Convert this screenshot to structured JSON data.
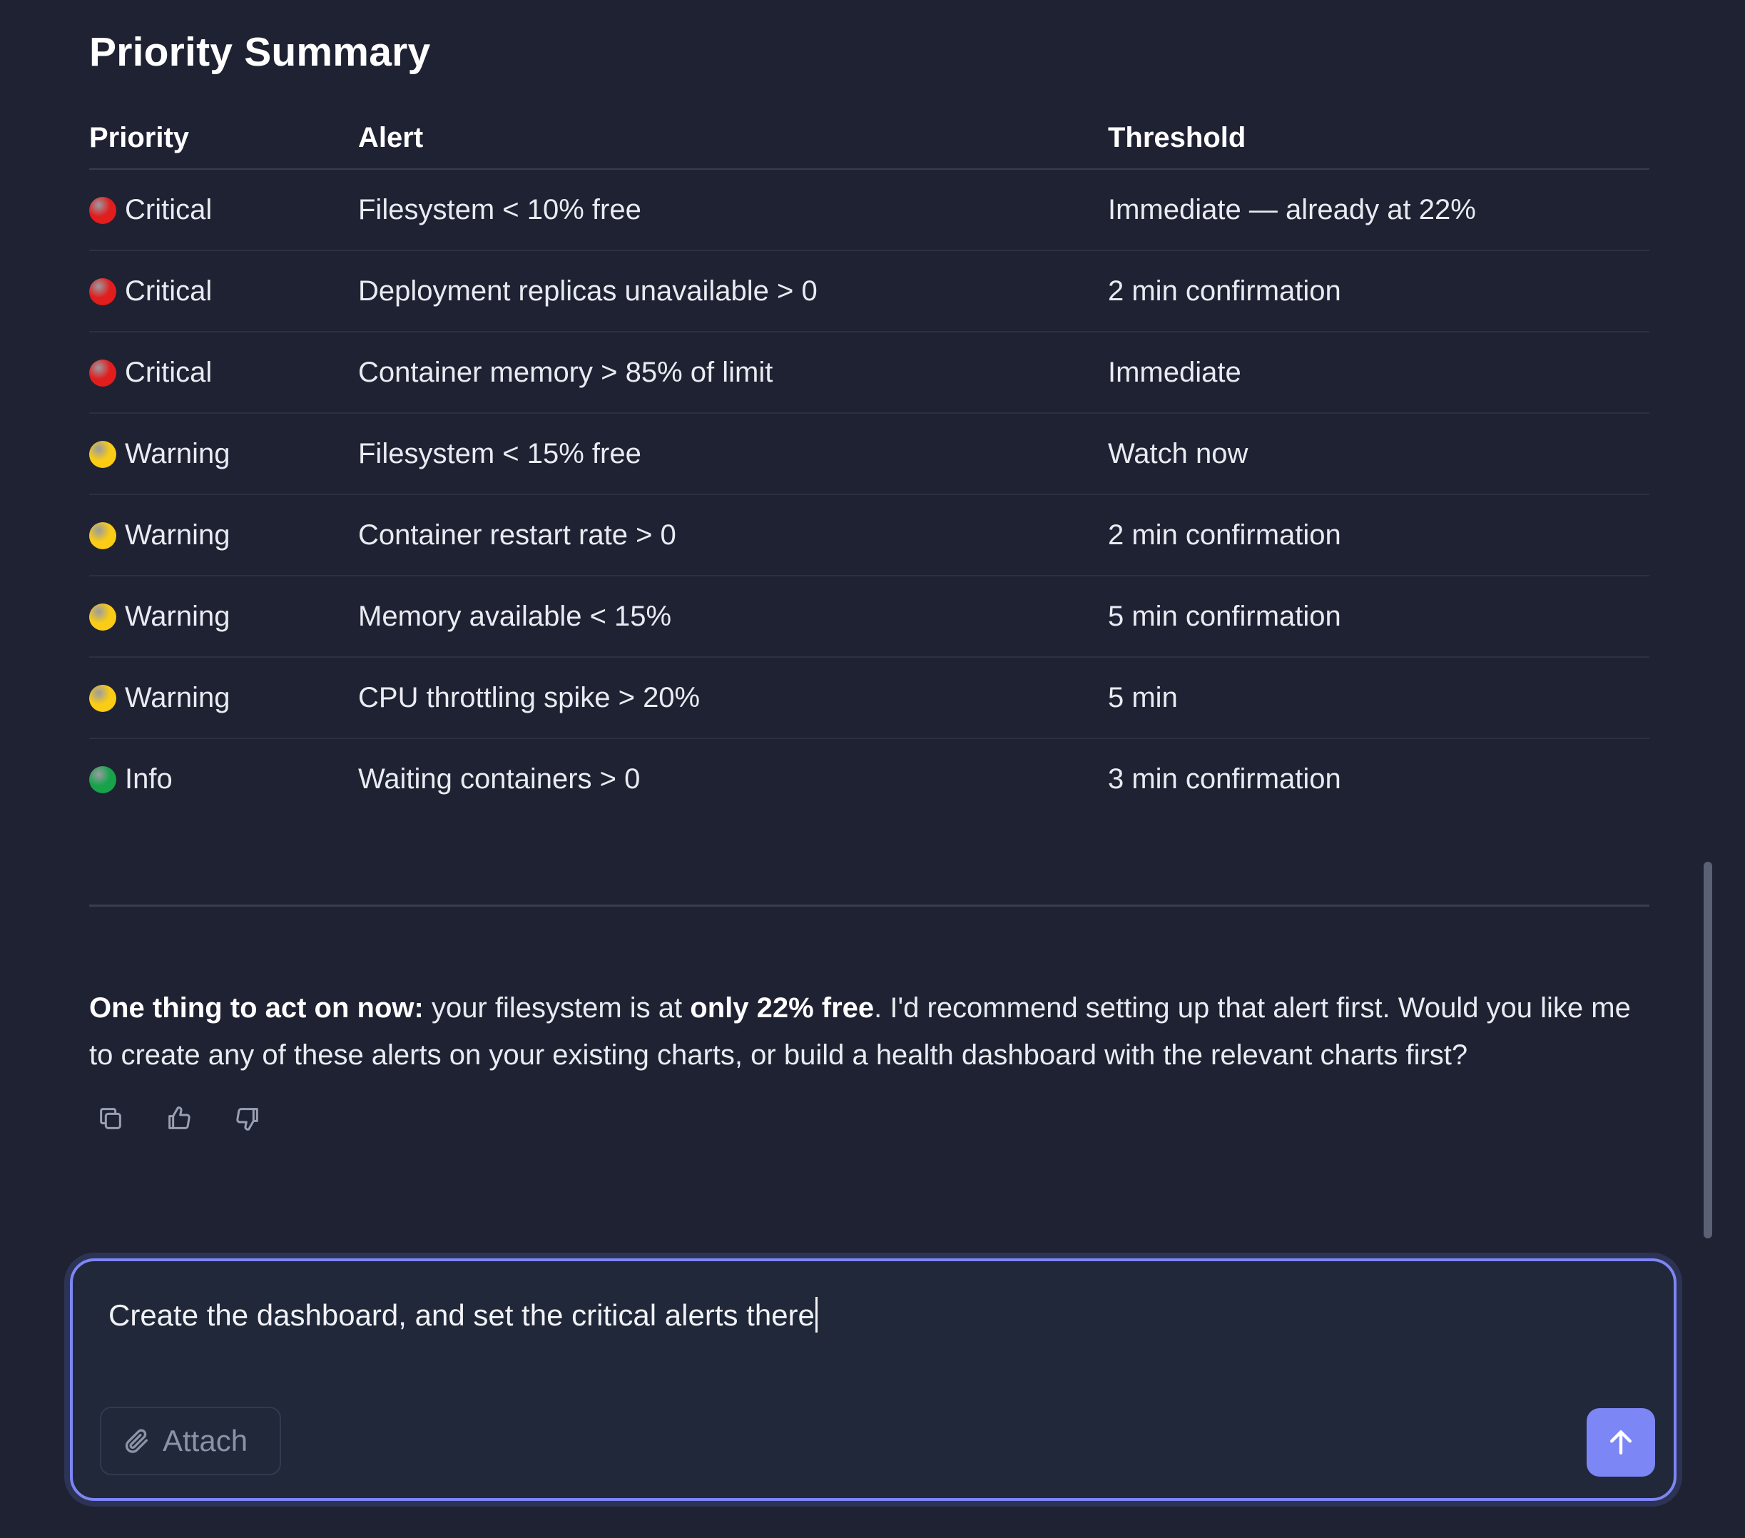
{
  "section": {
    "title": "Priority Summary"
  },
  "table": {
    "headers": [
      "Priority",
      "Alert",
      "Threshold"
    ],
    "rows": [
      {
        "priority": "Critical",
        "level": "critical",
        "alert": "Filesystem < 10% free",
        "threshold": "Immediate — already at 22%"
      },
      {
        "priority": "Critical",
        "level": "critical",
        "alert": "Deployment replicas unavailable > 0",
        "threshold": "2 min confirmation"
      },
      {
        "priority": "Critical",
        "level": "critical",
        "alert": "Container memory > 85% of limit",
        "threshold": "Immediate"
      },
      {
        "priority": "Warning",
        "level": "warning",
        "alert": "Filesystem < 15% free",
        "threshold": "Watch now"
      },
      {
        "priority": "Warning",
        "level": "warning",
        "alert": "Container restart rate > 0",
        "threshold": "2 min confirmation"
      },
      {
        "priority": "Warning",
        "level": "warning",
        "alert": "Memory available < 15%",
        "threshold": "5 min confirmation"
      },
      {
        "priority": "Warning",
        "level": "warning",
        "alert": "CPU throttling spike > 20%",
        "threshold": "5 min"
      },
      {
        "priority": "Info",
        "level": "info",
        "alert": "Waiting containers > 0",
        "threshold": "3 min confirmation"
      }
    ]
  },
  "message": {
    "lead": "One thing to act on now:",
    "text_1": " your filesystem is at ",
    "emphasis": "only 22% free",
    "text_2": ". I'd recommend setting up that alert first. Would you like me to create any of these alerts on your existing charts, or build a health dashboard with the relevant charts first?"
  },
  "message_actions": [
    {
      "name": "copy-button",
      "icon": "copy-icon"
    },
    {
      "name": "thumbs-up-button",
      "icon": "thumbs-up-icon"
    },
    {
      "name": "thumbs-down-button",
      "icon": "thumbs-down-icon"
    }
  ],
  "composer": {
    "value": "Create the dashboard, and set the critical alerts there",
    "attach_label": "Attach",
    "attach_icon": "paperclip-icon",
    "send_icon": "arrow-up-icon"
  },
  "colors": {
    "background": "#1f2232",
    "accent": "#7d86f5",
    "critical": "#e11d1d",
    "warning": "#facc15",
    "info": "#16a34a"
  }
}
